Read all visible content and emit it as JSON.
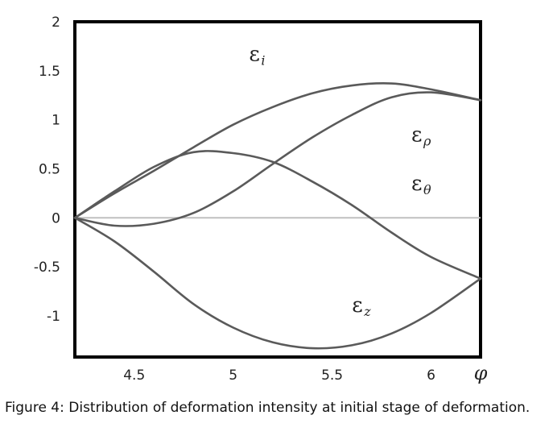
{
  "figure": {
    "caption": "Figure 4: Distribution of deformation intensity at initial stage of deformation."
  },
  "chart_data": {
    "type": "line",
    "title": "",
    "xlabel": "φ",
    "ylabel": "",
    "xlim": [
      4.2,
      6.25
    ],
    "ylim": [
      -1.42,
      2.0
    ],
    "x_ticks": [
      4.5,
      5,
      5.5,
      6
    ],
    "x_tick_labels": [
      "4.5",
      "5",
      "5.5",
      "6"
    ],
    "y_ticks": [
      2,
      1.5,
      1,
      0.5,
      0,
      -0.5,
      -1
    ],
    "y_tick_labels": [
      "2",
      "1.5",
      "1",
      "0.5",
      "0",
      "-0.5",
      "-1"
    ],
    "grid": false,
    "zero_line": true,
    "series": [
      {
        "name": "εi",
        "label_main": "ε",
        "label_sub": "i",
        "x": [
          4.2,
          4.4,
          4.6,
          4.8,
          5.0,
          5.2,
          5.4,
          5.6,
          5.8,
          6.0,
          6.25
        ],
        "y": [
          0.0,
          0.25,
          0.48,
          0.72,
          0.95,
          1.13,
          1.27,
          1.35,
          1.37,
          1.31,
          1.2
        ]
      },
      {
        "name": "ερ",
        "label_main": "ε",
        "label_sub": "ρ",
        "x": [
          4.2,
          4.4,
          4.6,
          4.8,
          5.0,
          5.2,
          5.4,
          5.6,
          5.8,
          6.0,
          6.25
        ],
        "y": [
          0.0,
          -0.08,
          -0.06,
          0.05,
          0.27,
          0.55,
          0.82,
          1.05,
          1.23,
          1.28,
          1.2
        ]
      },
      {
        "name": "εθ",
        "label_main": "ε",
        "label_sub": "θ",
        "x": [
          4.2,
          4.4,
          4.6,
          4.8,
          5.0,
          5.2,
          5.4,
          5.6,
          5.8,
          6.0,
          6.25
        ],
        "y": [
          0.0,
          0.27,
          0.52,
          0.67,
          0.66,
          0.57,
          0.37,
          0.13,
          -0.15,
          -0.4,
          -0.62
        ]
      },
      {
        "name": "εz",
        "label_main": "ε",
        "label_sub": "z",
        "x": [
          4.2,
          4.4,
          4.6,
          4.8,
          5.0,
          5.2,
          5.4,
          5.6,
          5.8,
          6.0,
          6.25
        ],
        "y": [
          0.0,
          -0.24,
          -0.55,
          -0.88,
          -1.12,
          -1.27,
          -1.33,
          -1.3,
          -1.18,
          -0.97,
          -0.62
        ]
      }
    ]
  },
  "style": {
    "curve_color": "#5a5a5a",
    "zero_line_color": "#c0c0c0",
    "frame_color": "#000000"
  }
}
